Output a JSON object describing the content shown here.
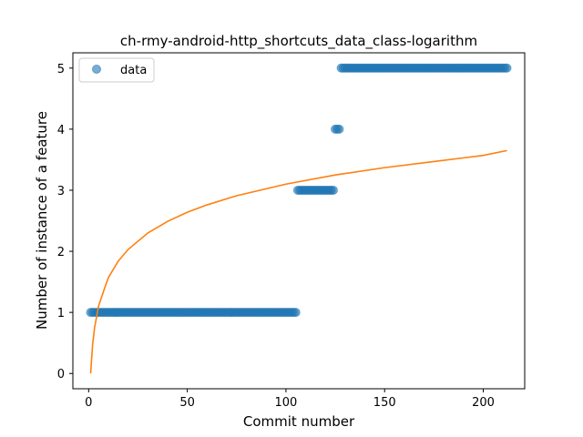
{
  "chart_data": {
    "type": "scatter",
    "title": "ch-rmy-android-http_shortcuts_data_class-logarithm",
    "xlabel": "Commit number",
    "ylabel": "Number of instance of a feature",
    "xlim": [
      -8,
      221
    ],
    "ylim": [
      -0.25,
      5.25
    ],
    "xticks": [
      0,
      50,
      100,
      150,
      200
    ],
    "yticks": [
      0,
      1,
      2,
      3,
      4,
      5
    ],
    "grid": false,
    "legend": {
      "placement": "top-left",
      "entries": [
        "data"
      ]
    },
    "series": [
      {
        "name": "data",
        "kind": "scatter",
        "color": "#1f77b4",
        "segments": [
          {
            "x_start": 1,
            "x_end": 105,
            "y": 1
          },
          {
            "x_start": 106,
            "x_end": 124,
            "y": 3
          },
          {
            "x_start": 125,
            "x_end": 127,
            "y": 4
          },
          {
            "x_start": 128,
            "x_end": 212,
            "y": 5
          }
        ]
      },
      {
        "kind": "line",
        "color": "#ff7f0e",
        "function": "logarithmic",
        "x_range": [
          1,
          212
        ],
        "points": [
          [
            1,
            0
          ],
          [
            2,
            0.47
          ],
          [
            3,
            0.75
          ],
          [
            5,
            1.1
          ],
          [
            8,
            1.39
          ],
          [
            10,
            1.57
          ],
          [
            15,
            1.84
          ],
          [
            20,
            2.03
          ],
          [
            30,
            2.3
          ],
          [
            40,
            2.49
          ],
          [
            50,
            2.64
          ],
          [
            60,
            2.76
          ],
          [
            75,
            2.91
          ],
          [
            100,
            3.1
          ],
          [
            125,
            3.25
          ],
          [
            150,
            3.37
          ],
          [
            175,
            3.47
          ],
          [
            200,
            3.57
          ],
          [
            212,
            3.65
          ]
        ]
      }
    ]
  }
}
